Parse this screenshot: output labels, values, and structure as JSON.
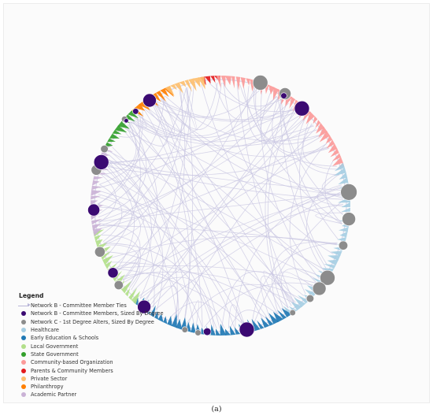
{
  "legend": {
    "title": "Legend",
    "items": [
      {
        "label": "Network B - Committee Member Ties",
        "type": "tie",
        "color": "#b9b6d8"
      },
      {
        "label": "Network B - Committee Members, Sized By Degree",
        "type": "dot",
        "color": "#3b0a72"
      },
      {
        "label": "Network C - 1st Degree Alters, Sized By Degree",
        "type": "dot",
        "color": "#8c8c8c"
      },
      {
        "label": "Healthcare",
        "type": "dot",
        "color": "#a6cee3"
      },
      {
        "label": "Early Education & Schools",
        "type": "dot",
        "color": "#1f78b4"
      },
      {
        "label": "Local Government",
        "type": "dot",
        "color": "#b2df8a"
      },
      {
        "label": "State Government",
        "type": "dot",
        "color": "#33a02c"
      },
      {
        "label": "Community-based Organization",
        "type": "dot",
        "color": "#fb9a99"
      },
      {
        "label": "Parents & Community Members",
        "type": "dot",
        "color": "#e31a1c"
      },
      {
        "label": "Private Sector",
        "type": "dot",
        "color": "#fdbf6f"
      },
      {
        "label": "Philanthropy",
        "type": "dot",
        "color": "#ff7f00"
      },
      {
        "label": "Academic Partner",
        "type": "dot",
        "color": "#cab2d6"
      }
    ]
  },
  "caption": "(a)",
  "colors": {
    "edge": "#c8c6e2",
    "member": "#3b0a72",
    "alter": "#8c8c8c"
  },
  "sectors": [
    {
      "name": "Parents & Community Members",
      "color": "#e31a1c",
      "start": -8,
      "end": -1
    },
    {
      "name": "Community-based Organization",
      "color": "#fb9a99",
      "start": -1,
      "end": 72
    },
    {
      "name": "Healthcare",
      "color": "#a6cee3",
      "start": 72,
      "end": 148
    },
    {
      "name": "Early Education & Schools",
      "color": "#1f78b4",
      "start": 148,
      "end": 222
    },
    {
      "name": "Local Government",
      "color": "#b2df8a",
      "start": 222,
      "end": 258
    },
    {
      "name": "Academic Partner",
      "color": "#cab2d6",
      "start": 258,
      "end": 298
    },
    {
      "name": "State Government",
      "color": "#33a02c",
      "start": 298,
      "end": 318
    },
    {
      "name": "Philanthropy",
      "color": "#ff7f00",
      "start": 318,
      "end": 336
    },
    {
      "name": "Private Sector",
      "color": "#fdbf6f",
      "start": 336,
      "end": 352
    }
  ],
  "members": [
    {
      "angle": 326,
      "degree": 9
    },
    {
      "angle": 40,
      "degree": 10
    },
    {
      "angle": 318,
      "degree": 4
    },
    {
      "angle": 312,
      "degree": 3
    },
    {
      "angle": 290,
      "degree": 10
    },
    {
      "angle": 268,
      "degree": 8
    },
    {
      "angle": 238,
      "degree": 7
    },
    {
      "angle": 217,
      "degree": 9
    },
    {
      "angle": 186,
      "degree": 5
    },
    {
      "angle": 168,
      "degree": 10
    },
    {
      "angle": 30,
      "degree": 4
    }
  ],
  "alters": [
    {
      "angle": 18,
      "degree": 10
    },
    {
      "angle": 30,
      "degree": 8
    },
    {
      "angle": 84,
      "degree": 11
    },
    {
      "angle": 96,
      "degree": 9
    },
    {
      "angle": 108,
      "degree": 6
    },
    {
      "angle": 124,
      "degree": 10
    },
    {
      "angle": 130,
      "degree": 9
    },
    {
      "angle": 136,
      "degree": 5
    },
    {
      "angle": 146,
      "degree": 4
    },
    {
      "angle": 196,
      "degree": 4
    },
    {
      "angle": 190,
      "degree": 4
    },
    {
      "angle": 249,
      "degree": 7
    },
    {
      "angle": 286,
      "degree": 7
    },
    {
      "angle": 232,
      "degree": 6
    },
    {
      "angle": 296,
      "degree": 5
    },
    {
      "angle": 312,
      "degree": 4
    }
  ]
}
